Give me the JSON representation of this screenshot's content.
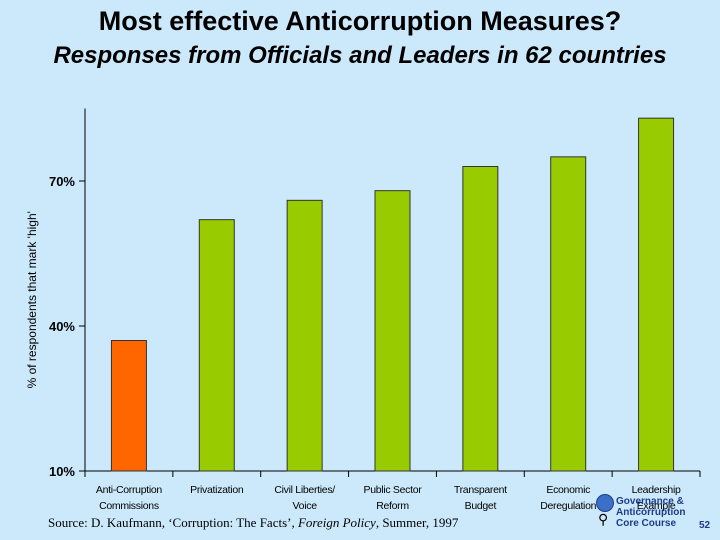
{
  "header": {
    "title": "Most effective Anticorruption Measures?",
    "subtitle": "Responses from Officials and Leaders in 62 countries"
  },
  "chart_data": {
    "type": "bar",
    "title": "Most effective Anticorruption Measures?",
    "subtitle": "Responses from Officials and Leaders in 62 countries",
    "xlabel": "",
    "ylabel": "% of respondents that mark 'high'",
    "ylim": [
      10,
      85
    ],
    "yticks": [
      10,
      40,
      70
    ],
    "ytick_labels": [
      "10%",
      "40%",
      "70%"
    ],
    "categories": [
      [
        "Anti-Corruption",
        "Commissions"
      ],
      [
        "Privatization"
      ],
      [
        "Civil Liberties/",
        "Voice"
      ],
      [
        "Public Sector",
        "Reform"
      ],
      [
        "Transparent",
        "Budget"
      ],
      [
        "Economic",
        "Deregulation"
      ],
      [
        "Leadership",
        "Example"
      ]
    ],
    "values": [
      37,
      62,
      66,
      68,
      73,
      75,
      83
    ],
    "colors": [
      "#ff6600",
      "#99cc00",
      "#99cc00",
      "#99cc00",
      "#99cc00",
      "#99cc00",
      "#99cc00"
    ],
    "grid": false,
    "legend": "none"
  },
  "source": {
    "prefix": "Source:   D. Kaufmann, ‘Corruption: The Facts’, ",
    "journal": "Foreign Policy",
    "suffix": ", Summer, 1997"
  },
  "footer": {
    "org_line1": "Governance &",
    "org_line2": "Anticorruption",
    "org_line3": "Core Course",
    "slide_number": "52"
  },
  "colors": {
    "background": "#cce9fb",
    "highlight_bar": "#ff6600",
    "bar": "#99cc00"
  }
}
